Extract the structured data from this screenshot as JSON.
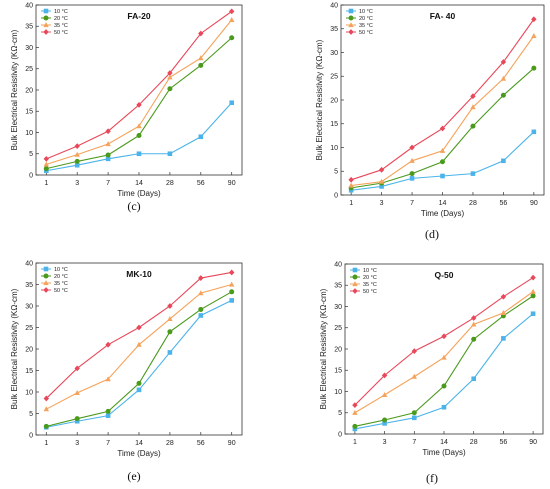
{
  "figure": {
    "colors": {
      "10 °C": "#4bb3ea",
      "20 °C": "#4a9a1c",
      "35 °C": "#f5a25a",
      "50 °C": "#e8485a"
    },
    "markers": {
      "10 °C": "square",
      "20 °C": "circle",
      "35 °C": "triangle",
      "50 °C": "diamond"
    }
  },
  "chart_data": [
    {
      "type": "line",
      "panel": "top-left",
      "caption": "(c)",
      "title": "FA-20",
      "xlabel": "Time (Days)",
      "ylabel": "Bulk  Electrical Resistivity (KΩ-cm)",
      "categories": [
        "1",
        "3",
        "7",
        "14",
        "28",
        "56",
        "90"
      ],
      "ylim": [
        0,
        40
      ],
      "yticks": [
        0,
        5,
        10,
        15,
        20,
        25,
        30,
        35,
        40
      ],
      "legend_position": "top-left",
      "series": [
        {
          "name": "10 °C",
          "values": [
            1.0,
            2.3,
            3.8,
            5.0,
            5.0,
            9.0,
            17.0
          ]
        },
        {
          "name": "20 °C",
          "values": [
            1.5,
            3.2,
            4.7,
            9.3,
            20.3,
            25.8,
            32.3
          ]
        },
        {
          "name": "35 °C",
          "values": [
            2.5,
            4.8,
            7.3,
            11.5,
            23.0,
            27.5,
            36.5
          ]
        },
        {
          "name": "50 °C",
          "values": [
            3.8,
            6.8,
            10.3,
            16.5,
            24.0,
            33.3,
            38.5
          ]
        }
      ]
    },
    {
      "type": "line",
      "panel": "top-right",
      "caption": "(d)",
      "title": "FA- 40",
      "xlabel": "Time (Days)",
      "ylabel": "Bulk  Electrical Resistivity (KΩ-cm)",
      "categories": [
        "1",
        "3",
        "7",
        "14",
        "28",
        "56",
        "90"
      ],
      "ylim": [
        0,
        40
      ],
      "yticks": [
        0,
        5,
        10,
        15,
        20,
        25,
        30,
        35,
        40
      ],
      "legend_position": "top-left",
      "series": [
        {
          "name": "10 °C",
          "values": [
            1.0,
            1.8,
            3.5,
            4.0,
            4.5,
            7.2,
            13.3
          ]
        },
        {
          "name": "20 °C",
          "values": [
            1.5,
            2.5,
            4.5,
            7.0,
            14.5,
            21.0,
            26.7
          ]
        },
        {
          "name": "35 °C",
          "values": [
            2.0,
            2.8,
            7.2,
            9.3,
            18.5,
            24.5,
            33.5
          ]
        },
        {
          "name": "50 °C",
          "values": [
            3.2,
            5.3,
            10.0,
            14.0,
            20.8,
            28.0,
            37.0
          ]
        }
      ]
    },
    {
      "type": "line",
      "panel": "bottom-left",
      "caption": "(e)",
      "title": "MK-10",
      "xlabel": "Time (Days)",
      "ylabel": "Bulk  Electrical Resistivity (KΩ-cm)",
      "categories": [
        "1",
        "3",
        "7",
        "14",
        "28",
        "56",
        "90"
      ],
      "ylim": [
        0,
        40
      ],
      "yticks": [
        0,
        5,
        10,
        15,
        20,
        25,
        30,
        35,
        40
      ],
      "legend_position": "top-left",
      "series": [
        {
          "name": "10 °C",
          "values": [
            1.8,
            3.2,
            4.5,
            10.5,
            19.2,
            27.8,
            31.3
          ]
        },
        {
          "name": "20 °C",
          "values": [
            2.0,
            3.8,
            5.5,
            12.0,
            24.0,
            29.2,
            33.3
          ]
        },
        {
          "name": "35 °C",
          "values": [
            6.0,
            9.8,
            13.0,
            21.0,
            27.0,
            33.0,
            35.0
          ]
        },
        {
          "name": "50 °C",
          "values": [
            8.5,
            15.5,
            21.0,
            25.0,
            30.0,
            36.5,
            37.8
          ]
        }
      ]
    },
    {
      "type": "line",
      "panel": "bottom-right",
      "caption": "(f)",
      "title": "Q-50",
      "xlabel": "Time (Days)",
      "ylabel": "Bulk  Electrical Resistivity (KΩ-cm)",
      "categories": [
        "1",
        "3",
        "7",
        "14",
        "28",
        "56",
        "90"
      ],
      "ylim": [
        0,
        40
      ],
      "yticks": [
        0,
        5,
        10,
        15,
        20,
        25,
        30,
        35,
        40
      ],
      "legend_position": "top-left",
      "series": [
        {
          "name": "10 °C",
          "values": [
            1.2,
            2.5,
            3.8,
            6.3,
            13.0,
            22.5,
            28.3
          ]
        },
        {
          "name": "20 °C",
          "values": [
            1.8,
            3.3,
            5.0,
            11.3,
            22.3,
            27.8,
            32.5
          ]
        },
        {
          "name": "35 °C",
          "values": [
            5.0,
            9.2,
            13.5,
            18.0,
            25.8,
            28.5,
            33.5
          ]
        },
        {
          "name": "50 °C",
          "values": [
            6.8,
            13.8,
            19.5,
            23.0,
            27.3,
            32.3,
            36.8
          ]
        }
      ]
    }
  ]
}
